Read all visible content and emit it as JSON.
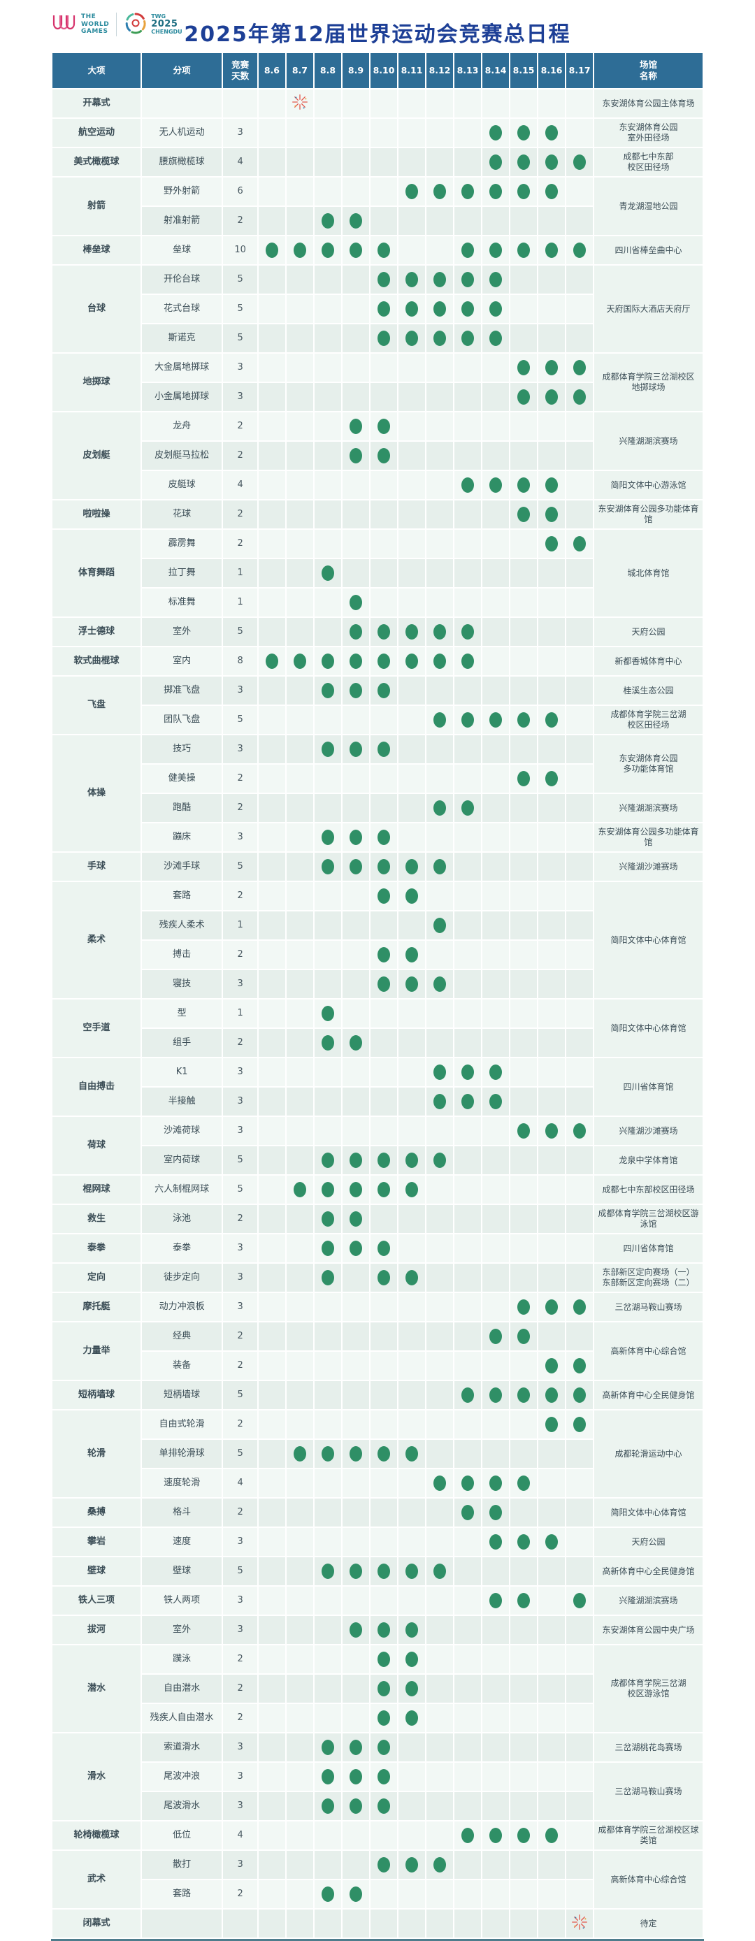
{
  "header": {
    "title": "2025年第12届世界运动会竞赛总日程",
    "logo_left": {
      "mark": "W",
      "lines": "THE\nWORLD\nGAMES"
    },
    "logo_right": {
      "org": "TWG",
      "year": "2025",
      "city": "CHENGDU"
    }
  },
  "colors": {
    "header_bg": "#2e6d96",
    "title": "#1d3f96",
    "dot_green": "#2f8f66",
    "row_light": "#f2f8f5",
    "row_dark": "#e6efeb",
    "span_cell": "#ecf4f0",
    "text": "#3b4d56",
    "firework_red": "#e2574c",
    "bottom_rule": "#4e7c8c"
  },
  "table": {
    "col_sport": "大项",
    "col_event": "分项",
    "col_days": "竞赛\n天数",
    "col_venue": "场馆\n名称",
    "dates": [
      "8.6",
      "8.7",
      "8.8",
      "8.9",
      "8.10",
      "8.11",
      "8.12",
      "8.13",
      "8.14",
      "8.15",
      "8.16",
      "8.17"
    ],
    "rows": [
      {
        "sport": "开幕式",
        "sportSpan": 1,
        "event": "",
        "days": "",
        "dots": [],
        "firework": "8.7",
        "venue": "东安湖体育公园主体育场",
        "venueSpan": 1
      },
      {
        "sport": "航空运动",
        "sportSpan": 1,
        "event": "无人机运动",
        "days": "3",
        "dots": [
          "8.14",
          "8.15",
          "8.16"
        ],
        "venue": "东安湖体育公园\n室外田径场",
        "venueSpan": 1
      },
      {
        "sport": "美式橄榄球",
        "sportSpan": 1,
        "event": "腰旗橄榄球",
        "days": "4",
        "dots": [
          "8.14",
          "8.15",
          "8.16",
          "8.17"
        ],
        "venue": "成都七中东部\n校区田径场",
        "venueSpan": 1
      },
      {
        "sport": "射箭",
        "sportSpan": 2,
        "event": "野外射箭",
        "days": "6",
        "dots": [
          "8.11",
          "8.12",
          "8.13",
          "8.14",
          "8.15",
          "8.16"
        ],
        "venue": "青龙湖湿地公园",
        "venueSpan": 2
      },
      {
        "event": "射准射箭",
        "days": "2",
        "dots": [
          "8.8",
          "8.9"
        ]
      },
      {
        "sport": "棒垒球",
        "sportSpan": 1,
        "event": "垒球",
        "days": "10",
        "dots": [
          "8.6",
          "8.7",
          "8.8",
          "8.9",
          "8.10",
          "8.13",
          "8.14",
          "8.15",
          "8.16",
          "8.17"
        ],
        "venue": "四川省棒垒曲中心",
        "venueSpan": 1
      },
      {
        "sport": "台球",
        "sportSpan": 3,
        "event": "开伦台球",
        "days": "5",
        "dots": [
          "8.10",
          "8.11",
          "8.12",
          "8.13",
          "8.14"
        ],
        "venue": "天府国际大酒店天府厅",
        "venueSpan": 3
      },
      {
        "event": "花式台球",
        "days": "5",
        "dots": [
          "8.10",
          "8.11",
          "8.12",
          "8.13",
          "8.14"
        ]
      },
      {
        "event": "斯诺克",
        "days": "5",
        "dots": [
          "8.10",
          "8.11",
          "8.12",
          "8.13",
          "8.14"
        ]
      },
      {
        "sport": "地掷球",
        "sportSpan": 2,
        "event": "大金属地掷球",
        "days": "3",
        "dots": [
          "8.15",
          "8.16",
          "8.17"
        ],
        "venue": "成都体育学院三岔湖校区\n地掷球场",
        "venueSpan": 2
      },
      {
        "event": "小金属地掷球",
        "days": "3",
        "dots": [
          "8.15",
          "8.16",
          "8.17"
        ]
      },
      {
        "sport": "皮划艇",
        "sportSpan": 3,
        "event": "龙舟",
        "days": "2",
        "dots": [
          "8.9",
          "8.10"
        ],
        "venue": "兴隆湖湖滨赛场",
        "venueSpan": 2
      },
      {
        "event": "皮划艇马拉松",
        "days": "2",
        "dots": [
          "8.9",
          "8.10"
        ]
      },
      {
        "event": "皮艇球",
        "days": "4",
        "dots": [
          "8.13",
          "8.14",
          "8.15",
          "8.16"
        ],
        "venue": "简阳文体中心游泳馆",
        "venueSpan": 1
      },
      {
        "sport": "啦啦操",
        "sportSpan": 1,
        "event": "花球",
        "days": "2",
        "dots": [
          "8.15",
          "8.16"
        ],
        "venue": "东安湖体育公园多功能体育馆",
        "venueSpan": 1
      },
      {
        "sport": "体育舞蹈",
        "sportSpan": 3,
        "event": "霹雳舞",
        "days": "2",
        "dots": [
          "8.16",
          "8.17"
        ],
        "venue": "城北体育馆",
        "venueSpan": 3
      },
      {
        "event": "拉丁舞",
        "days": "1",
        "dots": [
          "8.8"
        ]
      },
      {
        "event": "标准舞",
        "days": "1",
        "dots": [
          "8.9"
        ]
      },
      {
        "sport": "浮士德球",
        "sportSpan": 1,
        "event": "室外",
        "days": "5",
        "dots": [
          "8.9",
          "8.10",
          "8.11",
          "8.12",
          "8.13"
        ],
        "venue": "天府公园",
        "venueSpan": 1
      },
      {
        "sport": "软式曲棍球",
        "sportSpan": 1,
        "event": "室内",
        "days": "8",
        "dots": [
          "8.6",
          "8.7",
          "8.8",
          "8.9",
          "8.10",
          "8.11",
          "8.12",
          "8.13"
        ],
        "venue": "新都香城体育中心",
        "venueSpan": 1
      },
      {
        "sport": "飞盘",
        "sportSpan": 2,
        "event": "掷准飞盘",
        "days": "3",
        "dots": [
          "8.8",
          "8.9",
          "8.10"
        ],
        "venue": "桂溪生态公园",
        "venueSpan": 1
      },
      {
        "event": "团队飞盘",
        "days": "5",
        "dots": [
          "8.12",
          "8.13",
          "8.14",
          "8.15",
          "8.16"
        ],
        "venue": "成都体育学院三岔湖\n校区田径场",
        "venueSpan": 1
      },
      {
        "sport": "体操",
        "sportSpan": 4,
        "event": "技巧",
        "days": "3",
        "dots": [
          "8.8",
          "8.9",
          "8.10"
        ],
        "venue": "东安湖体育公园\n多功能体育馆",
        "venueSpan": 2
      },
      {
        "event": "健美操",
        "days": "2",
        "dots": [
          "8.15",
          "8.16"
        ]
      },
      {
        "event": "跑酷",
        "days": "2",
        "dots": [
          "8.12",
          "8.13"
        ],
        "venue": "兴隆湖湖滨赛场",
        "venueSpan": 1
      },
      {
        "event": "蹦床",
        "days": "3",
        "dots": [
          "8.8",
          "8.9",
          "8.10"
        ],
        "venue": "东安湖体育公园多功能体育馆",
        "venueSpan": 1
      },
      {
        "sport": "手球",
        "sportSpan": 1,
        "event": "沙滩手球",
        "days": "5",
        "dots": [
          "8.8",
          "8.9",
          "8.10",
          "8.11",
          "8.12"
        ],
        "venue": "兴隆湖沙滩赛场",
        "venueSpan": 1
      },
      {
        "sport": "柔术",
        "sportSpan": 4,
        "event": "套路",
        "days": "2",
        "dots": [
          "8.10",
          "8.11"
        ],
        "venue": "简阳文体中心体育馆",
        "venueSpan": 4
      },
      {
        "event": "残疾人柔术",
        "days": "1",
        "dots": [
          "8.12"
        ]
      },
      {
        "event": "搏击",
        "days": "2",
        "dots": [
          "8.10",
          "8.11"
        ]
      },
      {
        "event": "寝技",
        "days": "3",
        "dots": [
          "8.10",
          "8.11",
          "8.12"
        ]
      },
      {
        "sport": "空手道",
        "sportSpan": 2,
        "event": "型",
        "days": "1",
        "dots": [
          "8.8"
        ],
        "venue": "简阳文体中心体育馆",
        "venueSpan": 2
      },
      {
        "event": "组手",
        "days": "2",
        "dots": [
          "8.8",
          "8.9"
        ]
      },
      {
        "sport": "自由搏击",
        "sportSpan": 2,
        "event": "K1",
        "days": "3",
        "dots": [
          "8.12",
          "8.13",
          "8.14"
        ],
        "venue": "四川省体育馆",
        "venueSpan": 2
      },
      {
        "event": "半接触",
        "days": "3",
        "dots": [
          "8.12",
          "8.13",
          "8.14"
        ]
      },
      {
        "sport": "荷球",
        "sportSpan": 2,
        "event": "沙滩荷球",
        "days": "3",
        "dots": [
          "8.15",
          "8.16",
          "8.17"
        ],
        "venue": "兴隆湖沙滩赛场",
        "venueSpan": 1
      },
      {
        "event": "室内荷球",
        "days": "5",
        "dots": [
          "8.8",
          "8.9",
          "8.10",
          "8.11",
          "8.12"
        ],
        "venue": "龙泉中学体育馆",
        "venueSpan": 1
      },
      {
        "sport": "棍网球",
        "sportSpan": 1,
        "event": "六人制棍网球",
        "days": "5",
        "dots": [
          "8.7",
          "8.8",
          "8.9",
          "8.10",
          "8.11"
        ],
        "venue": "成都七中东部校区田径场",
        "venueSpan": 1
      },
      {
        "sport": "救生",
        "sportSpan": 1,
        "event": "泳池",
        "days": "2",
        "dots": [
          "8.8",
          "8.9"
        ],
        "venue": "成都体育学院三岔湖校区游泳馆",
        "venueSpan": 1
      },
      {
        "sport": "泰拳",
        "sportSpan": 1,
        "event": "泰拳",
        "days": "3",
        "dots": [
          "8.8",
          "8.9",
          "8.10"
        ],
        "venue": "四川省体育馆",
        "venueSpan": 1
      },
      {
        "sport": "定向",
        "sportSpan": 1,
        "event": "徒步定向",
        "days": "3",
        "dots": [
          "8.8",
          "8.10",
          "8.11"
        ],
        "venue": "东部新区定向赛场（一）\n东部新区定向赛场（二）",
        "venueSpan": 1
      },
      {
        "sport": "摩托艇",
        "sportSpan": 1,
        "event": "动力冲浪板",
        "days": "3",
        "dots": [
          "8.15",
          "8.16",
          "8.17"
        ],
        "venue": "三岔湖马鞍山赛场",
        "venueSpan": 1
      },
      {
        "sport": "力量举",
        "sportSpan": 2,
        "event": "经典",
        "days": "2",
        "dots": [
          "8.14",
          "8.15"
        ],
        "venue": "高新体育中心综合馆",
        "venueSpan": 2
      },
      {
        "event": "装备",
        "days": "2",
        "dots": [
          "8.16",
          "8.17"
        ]
      },
      {
        "sport": "短柄墙球",
        "sportSpan": 1,
        "event": "短柄墙球",
        "days": "5",
        "dots": [
          "8.13",
          "8.14",
          "8.15",
          "8.16",
          "8.17"
        ],
        "venue": "高新体育中心全民健身馆",
        "venueSpan": 1
      },
      {
        "sport": "轮滑",
        "sportSpan": 3,
        "event": "自由式轮滑",
        "days": "2",
        "dots": [
          "8.16",
          "8.17"
        ],
        "venue": "成都轮滑运动中心",
        "venueSpan": 3
      },
      {
        "event": "单排轮滑球",
        "days": "5",
        "dots": [
          "8.7",
          "8.8",
          "8.9",
          "8.10",
          "8.11"
        ]
      },
      {
        "event": "速度轮滑",
        "days": "4",
        "dots": [
          "8.12",
          "8.13",
          "8.14",
          "8.15"
        ]
      },
      {
        "sport": "桑搏",
        "sportSpan": 1,
        "event": "格斗",
        "days": "2",
        "dots": [
          "8.13",
          "8.14"
        ],
        "venue": "简阳文体中心体育馆",
        "venueSpan": 1
      },
      {
        "sport": "攀岩",
        "sportSpan": 1,
        "event": "速度",
        "days": "3",
        "dots": [
          "8.14",
          "8.15",
          "8.16"
        ],
        "venue": "天府公园",
        "venueSpan": 1
      },
      {
        "sport": "壁球",
        "sportSpan": 1,
        "event": "壁球",
        "days": "5",
        "dots": [
          "8.8",
          "8.9",
          "8.10",
          "8.11",
          "8.12"
        ],
        "venue": "高新体育中心全民健身馆",
        "venueSpan": 1
      },
      {
        "sport": "铁人三项",
        "sportSpan": 1,
        "event": "铁人两项",
        "days": "3",
        "dots": [
          "8.14",
          "8.15",
          "8.17"
        ],
        "venue": "兴隆湖湖滨赛场",
        "venueSpan": 1
      },
      {
        "sport": "拔河",
        "sportSpan": 1,
        "event": "室外",
        "days": "3",
        "dots": [
          "8.9",
          "8.10",
          "8.11"
        ],
        "venue": "东安湖体育公园中央广场",
        "venueSpan": 1
      },
      {
        "sport": "潜水",
        "sportSpan": 3,
        "event": "蹼泳",
        "days": "2",
        "dots": [
          "8.10",
          "8.11"
        ],
        "venue": "成都体育学院三岔湖\n校区游泳馆",
        "venueSpan": 3
      },
      {
        "event": "自由潜水",
        "days": "2",
        "dots": [
          "8.10",
          "8.11"
        ]
      },
      {
        "event": "残疾人自由潜水",
        "days": "2",
        "dots": [
          "8.10",
          "8.11"
        ]
      },
      {
        "sport": "滑水",
        "sportSpan": 3,
        "event": "索道滑水",
        "days": "3",
        "dots": [
          "8.8",
          "8.9",
          "8.10"
        ],
        "venue": "三岔湖桃花岛赛场",
        "venueSpan": 1
      },
      {
        "event": "尾波冲浪",
        "days": "3",
        "dots": [
          "8.8",
          "8.9",
          "8.10"
        ],
        "venue": "三岔湖马鞍山赛场",
        "venueSpan": 2
      },
      {
        "event": "尾波滑水",
        "days": "3",
        "dots": [
          "8.8",
          "8.9",
          "8.10"
        ]
      },
      {
        "sport": "轮椅橄榄球",
        "sportSpan": 1,
        "event": "低位",
        "days": "4",
        "dots": [
          "8.13",
          "8.14",
          "8.15",
          "8.16"
        ],
        "venue": "成都体育学院三岔湖校区球类馆",
        "venueSpan": 1
      },
      {
        "sport": "武术",
        "sportSpan": 2,
        "event": "散打",
        "days": "3",
        "dots": [
          "8.10",
          "8.11",
          "8.12"
        ],
        "venue": "高新体育中心综合馆",
        "venueSpan": 2
      },
      {
        "event": "套路",
        "days": "2",
        "dots": [
          "8.8",
          "8.9"
        ]
      },
      {
        "sport": "闭幕式",
        "sportSpan": 1,
        "event": "",
        "days": "",
        "dots": [],
        "firework": "8.17",
        "venue": "待定",
        "venueSpan": 1
      }
    ]
  }
}
